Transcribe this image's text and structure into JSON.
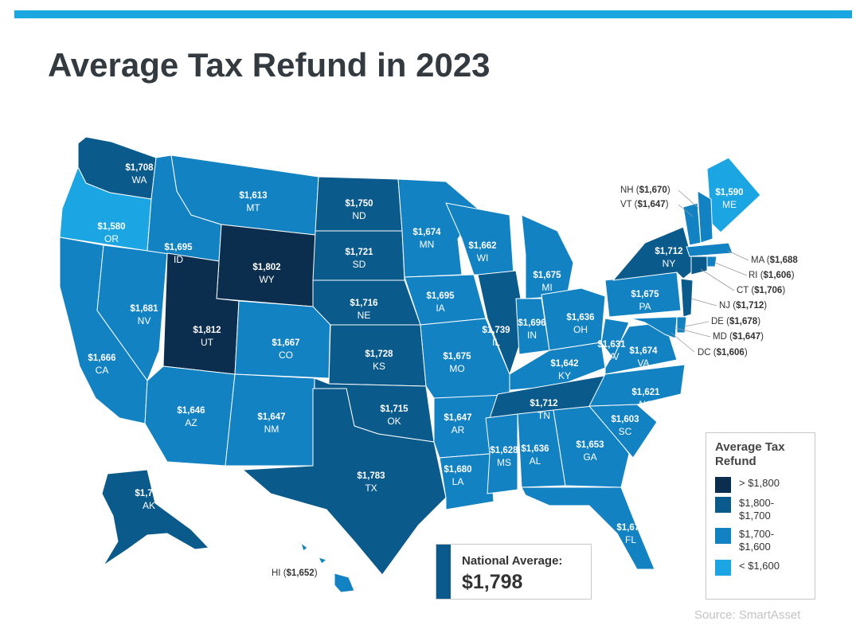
{
  "title": "Average Tax Refund in 2023",
  "colors": {
    "accent_bar": "#1aa7e0",
    "tier_1": "#0b2e4f",
    "tier_2": "#0b5a8c",
    "tier_3": "#1282c2",
    "tier_4": "#1ba5e3"
  },
  "legend": {
    "title": "Average Tax Refund",
    "items": [
      {
        "label": "> $1,800",
        "tier": 1
      },
      {
        "label": "$1,800-\n$1,700",
        "tier": 2
      },
      {
        "label": "$1,700-\n$1,600",
        "tier": 3
      },
      {
        "label": "< $1,600",
        "tier": 4
      }
    ]
  },
  "national": {
    "label": "National Average:",
    "value": "$1,798"
  },
  "source": "Source: SmartAsset",
  "states": {
    "WA": {
      "value": "$1,708",
      "tier": 2
    },
    "OR": {
      "value": "$1,580",
      "tier": 4
    },
    "CA": {
      "value": "$1,666",
      "tier": 3
    },
    "ID": {
      "value": "$1,695",
      "tier": 3
    },
    "NV": {
      "value": "$1,681",
      "tier": 3
    },
    "MT": {
      "value": "$1,613",
      "tier": 3
    },
    "WY": {
      "value": "$1,802",
      "tier": 1
    },
    "UT": {
      "value": "$1,812",
      "tier": 1
    },
    "CO": {
      "value": "$1,667",
      "tier": 3
    },
    "AZ": {
      "value": "$1,646",
      "tier": 3
    },
    "NM": {
      "value": "$1,647",
      "tier": 3
    },
    "ND": {
      "value": "$1,750",
      "tier": 2
    },
    "SD": {
      "value": "$1,721",
      "tier": 2
    },
    "NE": {
      "value": "$1,716",
      "tier": 2
    },
    "KS": {
      "value": "$1,728",
      "tier": 2
    },
    "OK": {
      "value": "$1,715",
      "tier": 2
    },
    "TX": {
      "value": "$1,783",
      "tier": 2
    },
    "MN": {
      "value": "$1,674",
      "tier": 3
    },
    "IA": {
      "value": "$1,695",
      "tier": 3
    },
    "MO": {
      "value": "$1,675",
      "tier": 3
    },
    "AR": {
      "value": "$1,647",
      "tier": 3
    },
    "LA": {
      "value": "$1,680",
      "tier": 3
    },
    "WI": {
      "value": "$1,662",
      "tier": 3
    },
    "IL": {
      "value": "$1,739",
      "tier": 2
    },
    "MI": {
      "value": "$1,675",
      "tier": 3
    },
    "IN": {
      "value": "$1,696",
      "tier": 3
    },
    "OH": {
      "value": "$1,636",
      "tier": 3
    },
    "KY": {
      "value": "$1,642",
      "tier": 3
    },
    "TN": {
      "value": "$1,712",
      "tier": 2
    },
    "MS": {
      "value": "$1,628",
      "tier": 3
    },
    "AL": {
      "value": "$1,636",
      "tier": 3
    },
    "GA": {
      "value": "$1,653",
      "tier": 3
    },
    "FL": {
      "value": "$1,674",
      "tier": 3
    },
    "SC": {
      "value": "$1,603",
      "tier": 3
    },
    "NC": {
      "value": "$1,621",
      "tier": 3
    },
    "VA": {
      "value": "$1,674",
      "tier": 3
    },
    "WV": {
      "value": "$1,631",
      "tier": 3
    },
    "PA": {
      "value": "$1,675",
      "tier": 3
    },
    "NY": {
      "value": "$1,712",
      "tier": 2
    },
    "ME": {
      "value": "$1,590",
      "tier": 4
    },
    "AK": {
      "value": "$1,734",
      "tier": 2
    },
    "HI": {
      "value": "$1,652",
      "tier": 3
    },
    "NH": {
      "value": "$1,670",
      "tier": 3
    },
    "VT": {
      "value": "$1,647",
      "tier": 3
    },
    "MA": {
      "value": "$1,688",
      "tier": 3
    },
    "RI": {
      "value": "$1,606",
      "tier": 3
    },
    "CT": {
      "value": "$1,706",
      "tier": 2
    },
    "NJ": {
      "value": "$1,712",
      "tier": 2
    },
    "DE": {
      "value": "$1,678",
      "tier": 3
    },
    "MD": {
      "value": "$1,647",
      "tier": 3
    },
    "DC": {
      "value": "$1,606",
      "tier": 3
    }
  }
}
